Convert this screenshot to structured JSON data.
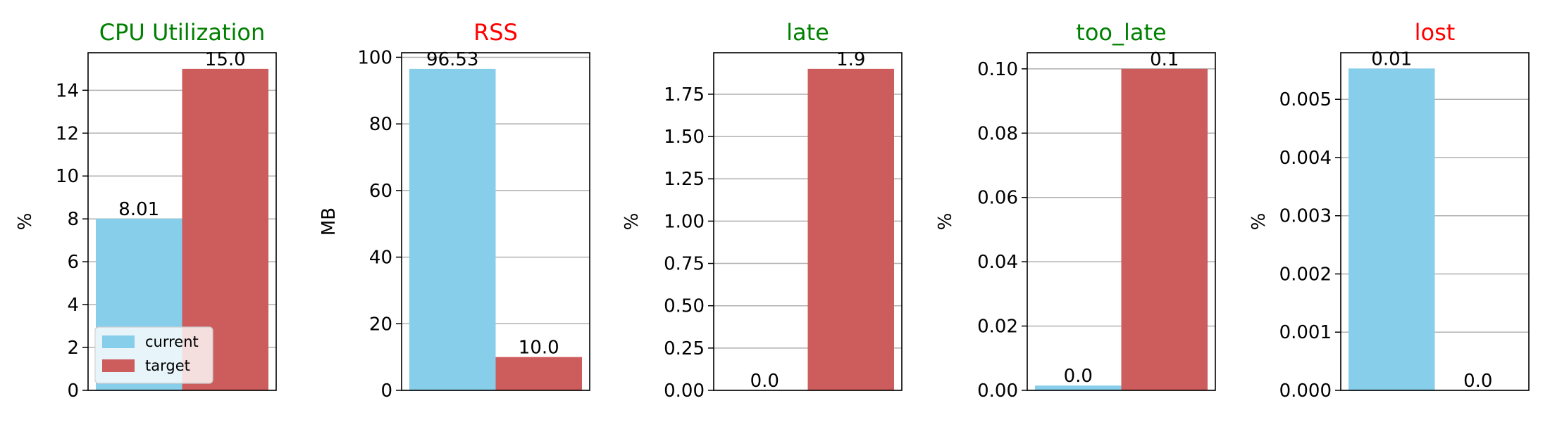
{
  "colors": {
    "current": "#87CEEB",
    "target": "#CD5C5C",
    "title_ok": "#008000",
    "title_bad": "#FF0000",
    "grid": "#b0b0b0"
  },
  "legend": {
    "placement": "lower-left",
    "panel": 0,
    "entries": [
      {
        "label": "current",
        "color_key": "current"
      },
      {
        "label": "target",
        "color_key": "target"
      }
    ]
  },
  "chart_data": [
    {
      "type": "bar",
      "title": "CPU Utilization",
      "title_color": "#008000",
      "ylabel": "%",
      "categories": [
        "current",
        "target"
      ],
      "values": [
        8.01,
        15.0
      ],
      "data_labels": [
        "8.01",
        "15.0"
      ],
      "ylim": [
        0,
        15.75
      ],
      "yticks": [
        0,
        2,
        4,
        6,
        8,
        10,
        12,
        14
      ],
      "ytick_labels": [
        "0",
        "2",
        "4",
        "6",
        "8",
        "10",
        "12",
        "14"
      ],
      "grid": true
    },
    {
      "type": "bar",
      "title": "RSS",
      "title_color": "#FF0000",
      "ylabel": "MB",
      "categories": [
        "current",
        "target"
      ],
      "values": [
        96.53,
        10.0
      ],
      "data_labels": [
        "96.53",
        "10.0"
      ],
      "ylim": [
        0,
        101.36
      ],
      "yticks": [
        0,
        20,
        40,
        60,
        80,
        100
      ],
      "ytick_labels": [
        "0",
        "20",
        "40",
        "60",
        "80",
        "100"
      ],
      "grid": true
    },
    {
      "type": "bar",
      "title": "late",
      "title_color": "#008000",
      "ylabel": "%",
      "categories": [
        "current",
        "target"
      ],
      "values": [
        0.0,
        1.9
      ],
      "data_labels": [
        "0.0",
        "1.9"
      ],
      "ylim": [
        0,
        1.995
      ],
      "yticks": [
        0,
        0.25,
        0.5,
        0.75,
        1.0,
        1.25,
        1.5,
        1.75
      ],
      "ytick_labels": [
        "0.00",
        "0.25",
        "0.50",
        "0.75",
        "1.00",
        "1.25",
        "1.50",
        "1.75"
      ],
      "grid": true
    },
    {
      "type": "bar",
      "title": "too_late",
      "title_color": "#008000",
      "ylabel": "%",
      "categories": [
        "current",
        "target"
      ],
      "values": [
        0.0015,
        0.1
      ],
      "data_labels": [
        "0.0",
        "0.1"
      ],
      "ylim": [
        0,
        0.105
      ],
      "yticks": [
        0,
        0.02,
        0.04,
        0.06,
        0.08,
        0.1
      ],
      "ytick_labels": [
        "0.00",
        "0.02",
        "0.04",
        "0.06",
        "0.08",
        "0.10"
      ],
      "grid": true
    },
    {
      "type": "bar",
      "title": "lost",
      "title_color": "#FF0000",
      "ylabel": "%",
      "categories": [
        "current",
        "target"
      ],
      "values": [
        0.00553,
        0.0
      ],
      "data_labels": [
        "0.01",
        "0.0"
      ],
      "ylim": [
        0,
        0.0058
      ],
      "yticks": [
        0,
        0.001,
        0.002,
        0.003,
        0.004,
        0.005
      ],
      "ytick_labels": [
        "0.000",
        "0.001",
        "0.002",
        "0.003",
        "0.004",
        "0.005"
      ],
      "grid": true
    }
  ]
}
